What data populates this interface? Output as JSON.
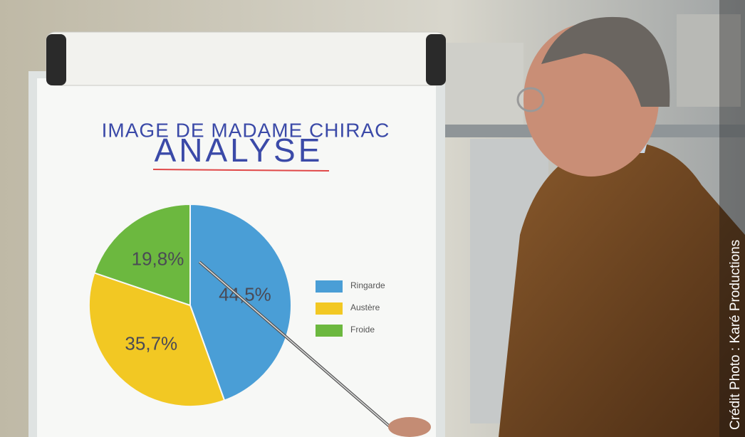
{
  "chart_data": {
    "type": "pie",
    "title": "IMAGE DE MADAME CHIRAC",
    "subtitle": "ANALYSE",
    "categories": [
      "Ringarde",
      "Austère",
      "Froide"
    ],
    "values": [
      44.5,
      35.7,
      19.8
    ],
    "value_labels": [
      "44,5%",
      "35,7%",
      "19,8%"
    ],
    "colors": [
      "#4a9ed6",
      "#f2c823",
      "#6cb83f"
    ],
    "start_angle": "top",
    "direction": "clockwise",
    "legend": "right"
  },
  "credit": "Crédit Photo : Karé Productions"
}
